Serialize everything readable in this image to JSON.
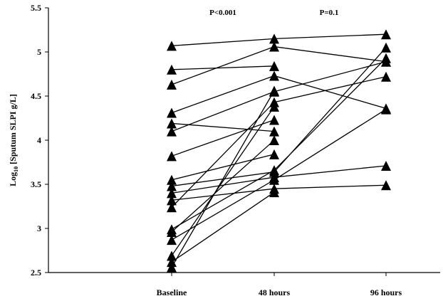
{
  "chart_data": {
    "type": "line",
    "ylabel": {
      "prefix": "Log",
      "subscript": "10",
      "rest": " [Sputum SLPI g/L]"
    },
    "categories": [
      "Baseline",
      "48 hours",
      "96 hours"
    ],
    "ylim": [
      2.5,
      5.5
    ],
    "yticks": [
      2.5,
      3,
      3.5,
      4,
      4.5,
      5,
      5.5
    ],
    "ytick_labels": [
      "2.5",
      "3",
      "3.5",
      "4",
      "4.5",
      "5",
      "5.5"
    ],
    "grid": false,
    "marker": "triangle",
    "marker_color": "#000000",
    "annotations": [
      {
        "text": "P<0.001",
        "between": [
          0,
          1
        ]
      },
      {
        "text": "P=0.1",
        "between": [
          1,
          2
        ]
      }
    ],
    "series": [
      {
        "values": [
          5.07,
          5.15,
          5.2
        ]
      },
      {
        "values": [
          4.8,
          4.84,
          null
        ]
      },
      {
        "values": [
          4.63,
          5.06,
          4.89
        ]
      },
      {
        "values": [
          4.31,
          4.73,
          4.36
        ]
      },
      {
        "values": [
          4.19,
          4.1,
          null
        ]
      },
      {
        "values": [
          4.1,
          4.55,
          4.89
        ]
      },
      {
        "values": [
          3.82,
          4.23,
          null
        ]
      },
      {
        "values": [
          3.55,
          3.84,
          null
        ]
      },
      {
        "values": [
          3.48,
          3.64,
          5.05
        ]
      },
      {
        "values": [
          3.4,
          3.58,
          3.71
        ]
      },
      {
        "values": [
          3.32,
          3.45,
          3.49
        ]
      },
      {
        "values": [
          3.24,
          4.43,
          4.72
        ]
      },
      {
        "values": [
          2.99,
          3.66,
          4.93
        ]
      },
      {
        "values": [
          2.96,
          4.0,
          null
        ]
      },
      {
        "values": [
          2.87,
          3.55,
          4.35
        ]
      },
      {
        "values": [
          2.69,
          4.38,
          null
        ]
      },
      {
        "values": [
          2.56,
          4.56,
          null
        ]
      },
      {
        "values": [
          2.62,
          3.41,
          null
        ]
      }
    ]
  }
}
